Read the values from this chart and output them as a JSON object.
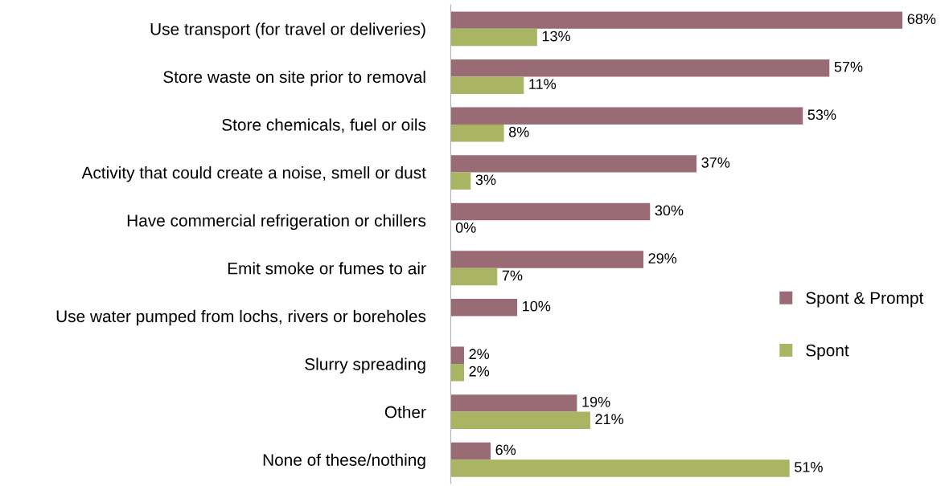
{
  "chart_data": {
    "type": "bar",
    "orientation": "horizontal",
    "categories": [
      "Use transport (for travel or deliveries)",
      "Store waste on site prior to removal",
      "Store chemicals, fuel or oils",
      "Activity that could create a noise, smell or dust",
      "Have commercial refrigeration or chillers",
      "Emit smoke or fumes to air",
      "Use water pumped from lochs, rivers or boreholes",
      "Slurry spreading",
      "Other",
      "None of these/nothing"
    ],
    "series": [
      {
        "name": "Spont & Prompt",
        "color": "#996b74",
        "values": [
          68,
          57,
          53,
          37,
          30,
          29,
          10,
          2,
          19,
          6
        ],
        "value_labels": [
          "68%",
          "57%",
          "53%",
          "37%",
          "30%",
          "29%",
          "10%",
          "2%",
          "19%",
          "6%"
        ]
      },
      {
        "name": "Spont",
        "color": "#a9b562",
        "values": [
          13,
          11,
          8,
          3,
          0,
          7,
          null,
          2,
          21,
          51
        ],
        "value_labels": [
          "13%",
          "11%",
          "8%",
          "3%",
          "0%",
          "7%",
          null,
          "2%",
          "21%",
          "51%"
        ]
      }
    ],
    "legend": "right",
    "grid": false
  }
}
